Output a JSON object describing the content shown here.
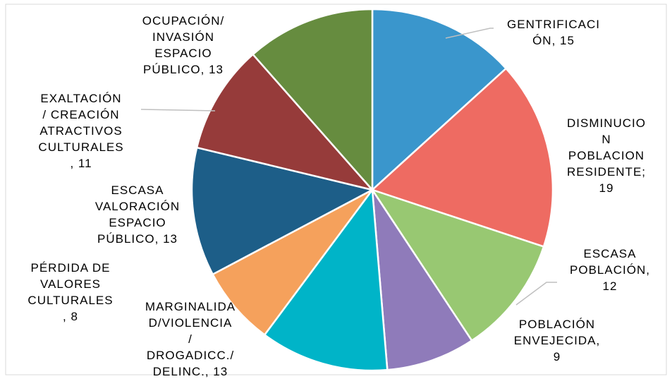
{
  "chart_data": {
    "type": "pie",
    "values": [
      15,
      19,
      12,
      9,
      13,
      8,
      13,
      11,
      13
    ],
    "value_labels": [
      "GENTRIFICACIÓN, 15",
      "DISMINUCION POBLACION RESIDENTE; 19",
      "ESCASA POBLACIÓN, 12",
      "POBLACIÓN ENVEJECIDA, 9",
      "MARGINALIDAD/VIOLENCIA/ DROGADICC./ DELINC., 13",
      "PÉRDIDA DE VALORES CULTURALES, 8",
      "ESCASA VALORACIÓN ESPACIO PÚBLICO, 13",
      "EXALTACIÓN/ CREACIÓN ATRACTIVOS CULTURALES, 11",
      "OCUPACIÓN/ INVASIÓN ESPACIO PÚBLICO, 13"
    ],
    "colors": [
      "#3a96cc",
      "#ee6b62",
      "#98c872",
      "#8f7bba",
      "#00b4c8",
      "#f5a15c",
      "#1d5e88",
      "#963b3a",
      "#668c3f"
    ]
  }
}
